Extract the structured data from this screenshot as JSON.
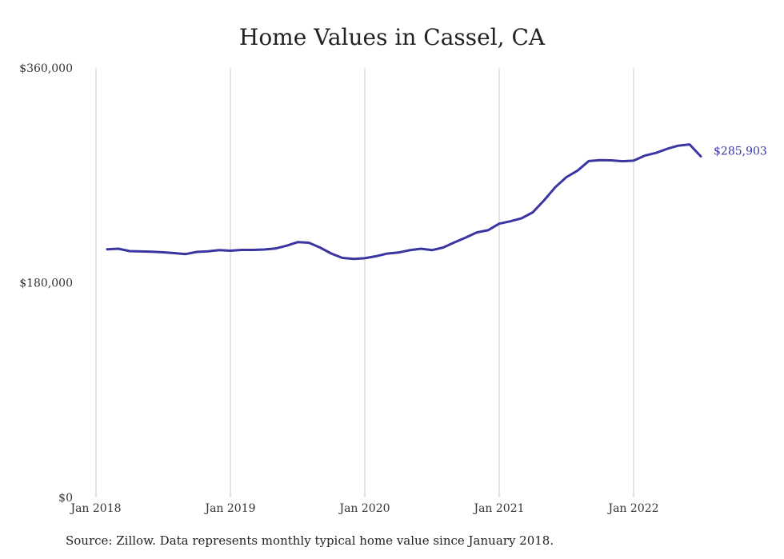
{
  "chart_data": {
    "type": "line",
    "title": "Home Values in Cassel, CA",
    "xlabel": "",
    "ylabel": "",
    "ylim": [
      0,
      360000
    ],
    "y_ticks": [
      {
        "value": 0,
        "label": "$0"
      },
      {
        "value": 180000,
        "label": "$180,000"
      },
      {
        "value": 360000,
        "label": "$360,000"
      }
    ],
    "x_ticks": [
      {
        "value": "2018-01",
        "label": "Jan 2018"
      },
      {
        "value": "2019-01",
        "label": "Jan 2019"
      },
      {
        "value": "2020-01",
        "label": "Jan 2020"
      },
      {
        "value": "2021-01",
        "label": "Jan 2021"
      },
      {
        "value": "2022-01",
        "label": "Jan 2022"
      }
    ],
    "vertical_grid": true,
    "horizontal_grid": false,
    "line_color": "#3a35a0",
    "end_label": "$285,903",
    "series": [
      {
        "x": [
          "2018-02",
          "2018-03",
          "2018-04",
          "2018-05",
          "2018-06",
          "2018-07",
          "2018-08",
          "2018-09",
          "2018-10",
          "2018-11",
          "2018-12",
          "2019-01",
          "2019-02",
          "2019-03",
          "2019-04",
          "2019-05",
          "2019-06",
          "2019-07",
          "2019-08",
          "2019-09",
          "2019-10",
          "2019-11",
          "2019-12",
          "2020-01",
          "2020-02",
          "2020-03",
          "2020-04",
          "2020-05",
          "2020-06",
          "2020-07",
          "2020-08",
          "2020-09",
          "2020-10",
          "2020-11",
          "2020-12",
          "2021-01",
          "2021-02",
          "2021-03",
          "2021-04",
          "2021-05",
          "2021-06",
          "2021-07",
          "2021-08",
          "2021-09",
          "2021-10",
          "2021-11",
          "2021-12",
          "2022-01",
          "2022-02",
          "2022-03",
          "2022-04",
          "2022-05",
          "2022-06",
          "2022-07"
        ],
        "y": [
          208000,
          208500,
          206500,
          206200,
          206000,
          205500,
          204800,
          204000,
          205800,
          206300,
          207300,
          206800,
          207500,
          207500,
          207800,
          208600,
          211000,
          214000,
          213500,
          209500,
          204500,
          200800,
          200000,
          200500,
          202200,
          204400,
          205300,
          207200,
          208500,
          207300,
          209500,
          213800,
          217800,
          222200,
          224000,
          229500,
          231500,
          234000,
          239000,
          249000,
          260000,
          268500,
          274000,
          282000,
          282700,
          282600,
          281800,
          282300,
          286500,
          288800,
          292200,
          294900,
          295900,
          285903
        ]
      }
    ]
  },
  "footer": {
    "source": "Source: Zillow. Data represents monthly typical home value since January 2018."
  }
}
